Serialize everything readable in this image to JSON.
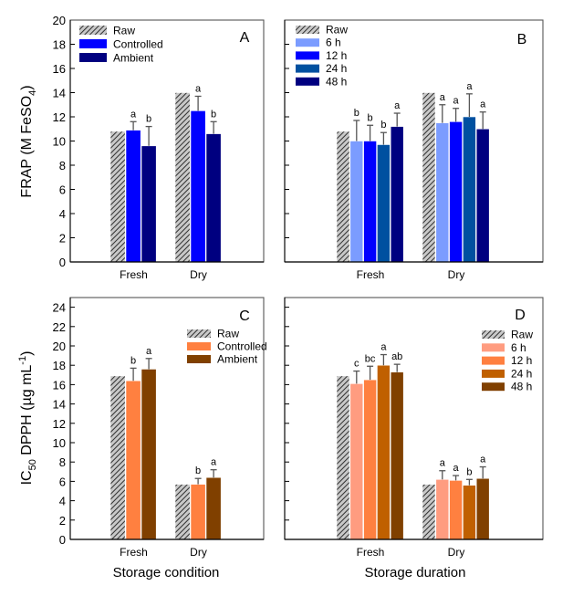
{
  "chart_data": [
    {
      "panel": "A",
      "type": "bar",
      "title": "",
      "panel_label": "A",
      "xlabel": "",
      "ylabel": "FRAP (M FeSO4)",
      "ylabel_parts": {
        "main": "FRAP (M FeSO",
        "sub": "4",
        "tail": ")"
      },
      "ylim": [
        0,
        20
      ],
      "yticks": [
        0,
        2,
        4,
        6,
        8,
        10,
        12,
        14,
        16,
        18,
        20
      ],
      "categories": [
        "Fresh",
        "Dry"
      ],
      "legend_position": "top-left",
      "series": [
        {
          "name": "Raw",
          "color": "#a0a0a0",
          "hatched": true,
          "values": [
            10.8,
            14.0
          ],
          "errors": [
            null,
            null
          ],
          "letters": [
            "",
            ""
          ]
        },
        {
          "name": "Controlled",
          "color": "#0000ff",
          "hatched": false,
          "values": [
            10.9,
            12.5
          ],
          "errors": [
            0.7,
            1.2
          ],
          "letters": [
            "a",
            "a"
          ]
        },
        {
          "name": "Ambient",
          "color": "#000080",
          "hatched": false,
          "values": [
            9.6,
            10.6
          ],
          "errors": [
            1.6,
            1.0
          ],
          "letters": [
            "b",
            "b"
          ]
        }
      ]
    },
    {
      "panel": "B",
      "type": "bar",
      "title": "",
      "panel_label": "B",
      "xlabel": "",
      "ylabel": "",
      "ylim": [
        0,
        20
      ],
      "yticks": [
        0,
        2,
        4,
        6,
        8,
        10,
        12,
        14,
        16,
        18,
        20
      ],
      "categories": [
        "Fresh",
        "Dry"
      ],
      "legend_position": "top-left",
      "series": [
        {
          "name": "Raw",
          "color": "#a0a0a0",
          "hatched": true,
          "values": [
            10.8,
            14.0
          ],
          "errors": [
            null,
            null
          ],
          "letters": [
            "",
            ""
          ]
        },
        {
          "name": "6 h",
          "color": "#7b9cff",
          "hatched": false,
          "values": [
            10.0,
            11.5
          ],
          "errors": [
            1.7,
            1.5
          ],
          "letters": [
            "b",
            "a"
          ]
        },
        {
          "name": "12 h",
          "color": "#0000ff",
          "hatched": false,
          "values": [
            10.0,
            11.6
          ],
          "errors": [
            1.3,
            1.1
          ],
          "letters": [
            "b",
            "a"
          ]
        },
        {
          "name": "24 h",
          "color": "#0050a0",
          "hatched": false,
          "values": [
            9.7,
            12.0
          ],
          "errors": [
            1.0,
            1.9
          ],
          "letters": [
            "b",
            "a"
          ]
        },
        {
          "name": "48 h",
          "color": "#000080",
          "hatched": false,
          "values": [
            11.2,
            11.0
          ],
          "errors": [
            1.1,
            1.4
          ],
          "letters": [
            "a",
            "a"
          ]
        }
      ]
    },
    {
      "panel": "C",
      "type": "bar",
      "title": "",
      "panel_label": "C",
      "xlabel": "Storage condition",
      "ylabel": "IC50 DPPH (µg mL-1)",
      "ylabel_parts": {
        "pre": "IC",
        "sub": "50",
        "main": " DPPH (µg mL",
        "sup": "-1",
        "tail": ")"
      },
      "ylim": [
        0,
        25
      ],
      "yticks": [
        0,
        2,
        4,
        6,
        8,
        10,
        12,
        14,
        16,
        18,
        20,
        22,
        24
      ],
      "categories": [
        "Fresh",
        "Dry"
      ],
      "legend_position": "top-right",
      "series": [
        {
          "name": "Raw",
          "color": "#a0a0a0",
          "hatched": true,
          "values": [
            16.9,
            5.7
          ],
          "errors": [
            null,
            null
          ],
          "letters": [
            "",
            ""
          ]
        },
        {
          "name": "Controlled",
          "color": "#ff8040",
          "hatched": false,
          "values": [
            16.4,
            5.7
          ],
          "errors": [
            1.3,
            0.6
          ],
          "letters": [
            "b",
            "b"
          ]
        },
        {
          "name": "Ambient",
          "color": "#804000",
          "hatched": false,
          "values": [
            17.6,
            6.4
          ],
          "errors": [
            1.1,
            0.8
          ],
          "letters": [
            "a",
            "a"
          ]
        }
      ]
    },
    {
      "panel": "D",
      "type": "bar",
      "title": "",
      "panel_label": "D",
      "xlabel": "Storage duration",
      "ylabel": "",
      "ylim": [
        0,
        25
      ],
      "yticks": [
        0,
        2,
        4,
        6,
        8,
        10,
        12,
        14,
        16,
        18,
        20,
        22,
        24
      ],
      "categories": [
        "Fresh",
        "Dry"
      ],
      "legend_position": "top-right",
      "series": [
        {
          "name": "Raw",
          "color": "#a0a0a0",
          "hatched": true,
          "values": [
            16.9,
            5.7
          ],
          "errors": [
            null,
            null
          ],
          "letters": [
            "",
            ""
          ]
        },
        {
          "name": "6 h",
          "color": "#ff9c80",
          "hatched": false,
          "values": [
            16.1,
            6.2
          ],
          "errors": [
            1.3,
            0.9
          ],
          "letters": [
            "c",
            "a"
          ]
        },
        {
          "name": "12 h",
          "color": "#ff8040",
          "hatched": false,
          "values": [
            16.5,
            6.1
          ],
          "errors": [
            1.4,
            0.5
          ],
          "letters": [
            "bc",
            "a"
          ]
        },
        {
          "name": "24 h",
          "color": "#c06000",
          "hatched": false,
          "values": [
            18.0,
            5.6
          ],
          "errors": [
            1.1,
            0.6
          ],
          "letters": [
            "a",
            "b"
          ]
        },
        {
          "name": "48 h",
          "color": "#804000",
          "hatched": false,
          "values": [
            17.3,
            6.3
          ],
          "errors": [
            0.8,
            1.2
          ],
          "letters": [
            "ab",
            "a"
          ]
        }
      ]
    }
  ]
}
